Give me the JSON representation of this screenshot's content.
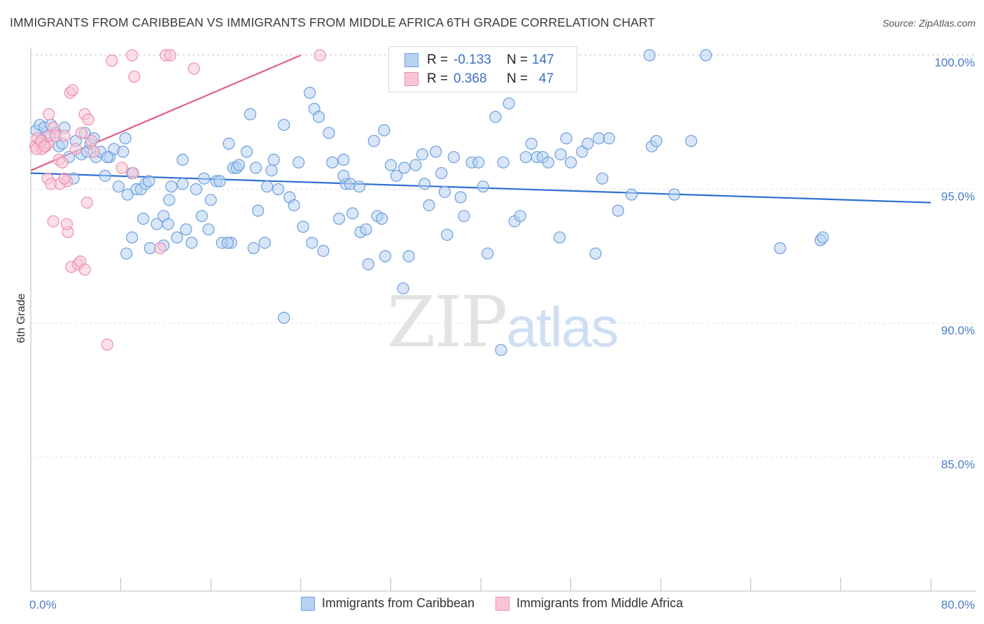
{
  "title": "IMMIGRANTS FROM CARIBBEAN VS IMMIGRANTS FROM MIDDLE AFRICA 6TH GRADE CORRELATION CHART",
  "source": "Source: ZipAtlas.com",
  "watermark": {
    "zip": "ZIP",
    "atlas": "atlas"
  },
  "colors": {
    "blue": "#6a9fde",
    "blue_fill": "#b8d2f2",
    "pink": "#ec8fad",
    "pink_fill": "#f8c6d6",
    "blue_line": "#2e6fd0",
    "pink_line": "#e0608a",
    "tick_text": "#4a7cc9"
  },
  "legend": {
    "rows": [
      {
        "r_label": "R =",
        "r_value": "-0.133",
        "n_label": "N =",
        "n_value": "147"
      },
      {
        "r_label": "R =",
        "r_value": "0.368",
        "n_label": "N =",
        "n_value": "47"
      }
    ]
  },
  "bottom_legend": [
    "Immigrants from Caribbean",
    "Immigrants from Middle Africa"
  ],
  "chart_data": {
    "type": "scatter",
    "title": "IMMIGRANTS FROM CARIBBEAN VS IMMIGRANTS FROM MIDDLE AFRICA 6TH GRADE CORRELATION CHART",
    "xlabel": "",
    "ylabel": "6th Grade",
    "xlim": [
      0,
      80
    ],
    "ylim": [
      80.5,
      101
    ],
    "x_tick_labels": [
      "0.0%",
      "80.0%"
    ],
    "y_ticks": [
      {
        "value": 100,
        "label": "100.0%"
      },
      {
        "value": 95,
        "label": "95.0%"
      },
      {
        "value": 90,
        "label": "90.0%"
      },
      {
        "value": 85,
        "label": "85.0%"
      }
    ],
    "series": [
      {
        "name": "Immigrants from Caribbean",
        "r": -0.133,
        "n": 147,
        "trend": {
          "x0": 0,
          "y0": 95.6,
          "x1": 80,
          "y1": 94.5
        },
        "points": [
          [
            0.5,
            97.2
          ],
          [
            0.8,
            97.4
          ],
          [
            1.2,
            97.3
          ],
          [
            1.5,
            97.0
          ],
          [
            1.0,
            96.8
          ],
          [
            1.8,
            97.4
          ],
          [
            2.2,
            97.1
          ],
          [
            2.5,
            96.6
          ],
          [
            2.8,
            96.7
          ],
          [
            3.0,
            97.3
          ],
          [
            3.4,
            96.2
          ],
          [
            3.8,
            95.4
          ],
          [
            4.0,
            96.8
          ],
          [
            4.5,
            96.3
          ],
          [
            4.8,
            97.1
          ],
          [
            5.0,
            96.4
          ],
          [
            5.3,
            96.7
          ],
          [
            5.6,
            96.9
          ],
          [
            5.8,
            96.2
          ],
          [
            6.2,
            96.4
          ],
          [
            6.6,
            95.5
          ],
          [
            7.0,
            96.2
          ],
          [
            7.4,
            96.5
          ],
          [
            7.8,
            95.1
          ],
          [
            8.4,
            96.9
          ],
          [
            8.6,
            94.8
          ],
          [
            9.0,
            95.6
          ],
          [
            9.4,
            95.0
          ],
          [
            9.8,
            95.0
          ],
          [
            10.2,
            95.2
          ],
          [
            10.5,
            95.3
          ],
          [
            6.8,
            96.2
          ],
          [
            8.2,
            96.4
          ],
          [
            9.0,
            93.2
          ],
          [
            8.5,
            92.6
          ],
          [
            10.0,
            93.9
          ],
          [
            10.6,
            92.8
          ],
          [
            11.2,
            93.7
          ],
          [
            11.8,
            94.0
          ],
          [
            12.3,
            94.6
          ],
          [
            12.5,
            95.1
          ],
          [
            13.0,
            93.2
          ],
          [
            13.5,
            95.2
          ],
          [
            14.3,
            93.0
          ],
          [
            14.7,
            95.0
          ],
          [
            15.4,
            95.4
          ],
          [
            16.0,
            94.6
          ],
          [
            16.5,
            95.3
          ],
          [
            17.0,
            93.0
          ],
          [
            17.8,
            93.0
          ],
          [
            17.6,
            96.7
          ],
          [
            18.0,
            95.8
          ],
          [
            18.3,
            95.8
          ],
          [
            18.5,
            95.9
          ],
          [
            19.2,
            96.4
          ],
          [
            19.5,
            97.8
          ],
          [
            19.8,
            92.8
          ],
          [
            20.2,
            94.2
          ],
          [
            20.8,
            93.0
          ],
          [
            21.0,
            95.1
          ],
          [
            21.4,
            95.7
          ],
          [
            21.6,
            96.1
          ],
          [
            22.0,
            95.0
          ],
          [
            22.5,
            97.4
          ],
          [
            23.0,
            94.7
          ],
          [
            23.4,
            94.4
          ],
          [
            23.8,
            96.0
          ],
          [
            24.2,
            93.6
          ],
          [
            24.8,
            98.6
          ],
          [
            25.2,
            98.0
          ],
          [
            25.6,
            97.7
          ],
          [
            26.0,
            92.7
          ],
          [
            26.5,
            97.1
          ],
          [
            26.8,
            96.0
          ],
          [
            27.4,
            93.9
          ],
          [
            27.8,
            96.1
          ],
          [
            28.0,
            95.2
          ],
          [
            28.4,
            95.2
          ],
          [
            28.6,
            94.1
          ],
          [
            29.3,
            93.4
          ],
          [
            29.8,
            93.5
          ],
          [
            30.0,
            92.2
          ],
          [
            30.5,
            96.8
          ],
          [
            30.8,
            94.0
          ],
          [
            31.2,
            93.9
          ],
          [
            31.4,
            97.2
          ],
          [
            32.0,
            95.9
          ],
          [
            32.5,
            95.5
          ],
          [
            33.2,
            95.8
          ],
          [
            33.6,
            92.5
          ],
          [
            34.2,
            95.9
          ],
          [
            35.0,
            95.2
          ],
          [
            35.4,
            94.4
          ],
          [
            36.0,
            96.4
          ],
          [
            36.5,
            95.6
          ],
          [
            37.0,
            93.3
          ],
          [
            37.6,
            96.2
          ],
          [
            38.2,
            94.7
          ],
          [
            38.5,
            94.0
          ],
          [
            39.2,
            96.0
          ],
          [
            39.8,
            96.0
          ],
          [
            40.2,
            95.1
          ],
          [
            40.6,
            92.6
          ],
          [
            41.3,
            97.7
          ],
          [
            42.0,
            96.0
          ],
          [
            42.5,
            98.2
          ],
          [
            43.0,
            93.8
          ],
          [
            43.5,
            94.0
          ],
          [
            44.0,
            96.2
          ],
          [
            44.5,
            96.7
          ],
          [
            45.0,
            96.2
          ],
          [
            45.5,
            96.2
          ],
          [
            46.0,
            96.0
          ],
          [
            47.1,
            96.3
          ],
          [
            47.6,
            96.9
          ],
          [
            48.0,
            96.0
          ],
          [
            49.0,
            96.4
          ],
          [
            49.5,
            96.7
          ],
          [
            50.5,
            96.9
          ],
          [
            50.8,
            95.4
          ],
          [
            51.4,
            96.9
          ],
          [
            52.2,
            94.2
          ],
          [
            53.4,
            94.8
          ],
          [
            55.2,
            96.6
          ],
          [
            55.6,
            96.8
          ],
          [
            57.2,
            94.8
          ],
          [
            58.7,
            96.8
          ],
          [
            66.6,
            92.8
          ],
          [
            70.2,
            93.1
          ],
          [
            70.4,
            93.2
          ],
          [
            50.2,
            92.6
          ],
          [
            47.0,
            93.2
          ],
          [
            41.8,
            89.0
          ],
          [
            33.1,
            91.3
          ],
          [
            22.5,
            90.2
          ],
          [
            31.5,
            92.5
          ],
          [
            13.8,
            93.5
          ],
          [
            15.8,
            93.5
          ],
          [
            17.5,
            93.0
          ],
          [
            11.8,
            92.9
          ],
          [
            12.2,
            93.7
          ],
          [
            15.2,
            94.0
          ],
          [
            20.0,
            95.8
          ],
          [
            25.0,
            93.0
          ],
          [
            27.8,
            95.5
          ],
          [
            36.8,
            94.9
          ],
          [
            55.0,
            100.0
          ],
          [
            60.0,
            100.0
          ],
          [
            29.2,
            95.1
          ],
          [
            34.8,
            96.3
          ],
          [
            13.5,
            96.1
          ],
          [
            16.8,
            95.3
          ]
        ]
      },
      {
        "name": "Immigrants from Middle Africa",
        "r": 0.368,
        "n": 47,
        "trend": {
          "x0": 0,
          "y0": 95.7,
          "x1": 24,
          "y1": 100.0
        },
        "points": [
          [
            0.4,
            96.6
          ],
          [
            0.6,
            96.9
          ],
          [
            0.8,
            96.7
          ],
          [
            1.0,
            96.5
          ],
          [
            1.3,
            96.6
          ],
          [
            1.5,
            96.7
          ],
          [
            1.7,
            97.0
          ],
          [
            2.0,
            97.3
          ],
          [
            2.2,
            97.0
          ],
          [
            0.5,
            96.5
          ],
          [
            0.9,
            96.8
          ],
          [
            1.2,
            96.6
          ],
          [
            1.6,
            97.8
          ],
          [
            2.5,
            96.1
          ],
          [
            2.8,
            96.0
          ],
          [
            3.0,
            97.0
          ],
          [
            3.2,
            95.3
          ],
          [
            3.5,
            98.6
          ],
          [
            3.7,
            98.7
          ],
          [
            4.0,
            96.5
          ],
          [
            4.5,
            97.1
          ],
          [
            4.8,
            97.8
          ],
          [
            5.1,
            97.6
          ],
          [
            5.4,
            96.8
          ],
          [
            3.3,
            93.4
          ],
          [
            3.6,
            92.1
          ],
          [
            4.2,
            92.2
          ],
          [
            4.4,
            92.3
          ],
          [
            4.8,
            92.0
          ],
          [
            2.0,
            93.8
          ],
          [
            3.2,
            93.7
          ],
          [
            5.0,
            94.5
          ],
          [
            1.5,
            95.4
          ],
          [
            1.8,
            95.2
          ],
          [
            2.6,
            95.2
          ],
          [
            3.0,
            95.4
          ],
          [
            5.6,
            96.4
          ],
          [
            6.8,
            89.2
          ],
          [
            7.2,
            99.8
          ],
          [
            8.1,
            95.8
          ],
          [
            9.0,
            100.0
          ],
          [
            9.2,
            99.2
          ],
          [
            9.1,
            95.6
          ],
          [
            11.5,
            92.8
          ],
          [
            12.0,
            100.0
          ],
          [
            12.4,
            100.0
          ],
          [
            14.5,
            99.5
          ],
          [
            25.7,
            100.0
          ]
        ]
      }
    ]
  }
}
